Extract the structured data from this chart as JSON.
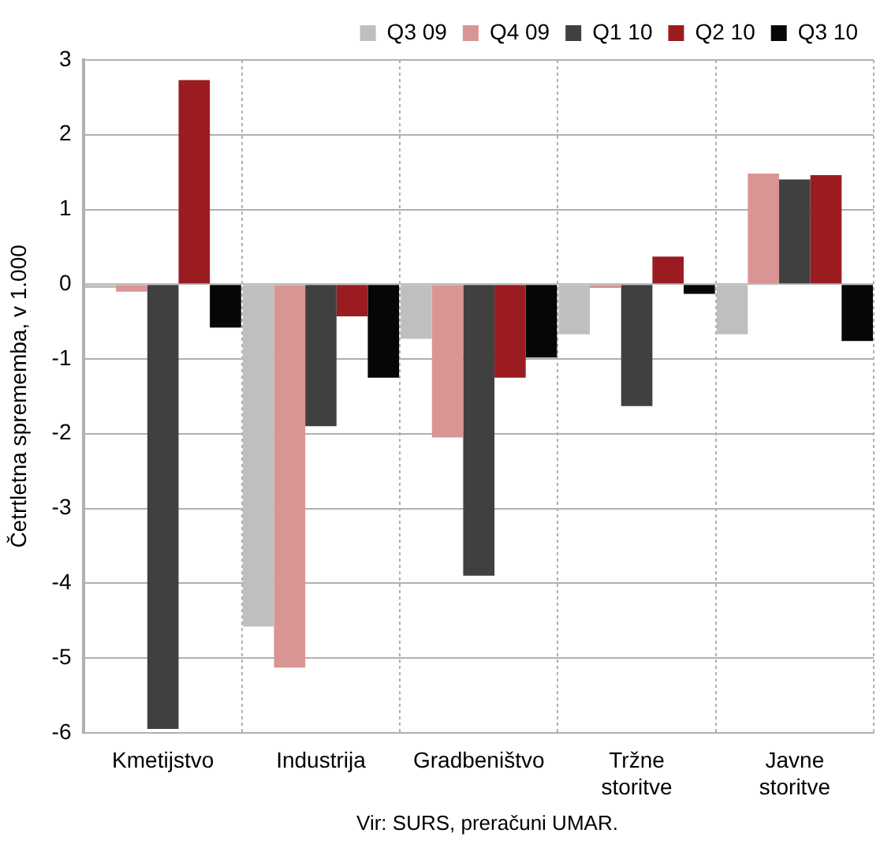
{
  "chart_data": {
    "type": "bar",
    "ylabel": "Četrtletna sprememba, v 1.000",
    "categories": [
      "Kmetijstvo",
      "Industrija",
      "Gradbeništvo",
      "Tržne storitve",
      "Javne storitve"
    ],
    "series": [
      {
        "name": "Q3 09",
        "color": "#bfbfbf",
        "values": [
          -0.05,
          -4.58,
          -0.73,
          -0.67,
          -0.67
        ]
      },
      {
        "name": "Q4 09",
        "color": "#d99594",
        "values": [
          -0.1,
          -5.13,
          -2.05,
          -0.05,
          1.48
        ]
      },
      {
        "name": "Q1 10",
        "color": "#404040",
        "values": [
          -5.95,
          -1.9,
          -3.9,
          -1.63,
          1.4
        ]
      },
      {
        "name": "Q2 10",
        "color": "#9b1c20",
        "values": [
          2.73,
          -0.43,
          -1.25,
          0.37,
          1.46
        ]
      },
      {
        "name": "Q3 10",
        "color": "#060606",
        "values": [
          -0.58,
          -1.25,
          -0.98,
          -0.13,
          -0.76
        ]
      }
    ],
    "ylim": [
      -6,
      3
    ],
    "yticks": [
      -6,
      -5,
      -4,
      -3,
      -2,
      -1,
      0,
      1,
      2,
      3
    ],
    "grid": true,
    "legend": "top right",
    "annotations": [
      "Vir: SURS, preračuni UMAR."
    ]
  }
}
